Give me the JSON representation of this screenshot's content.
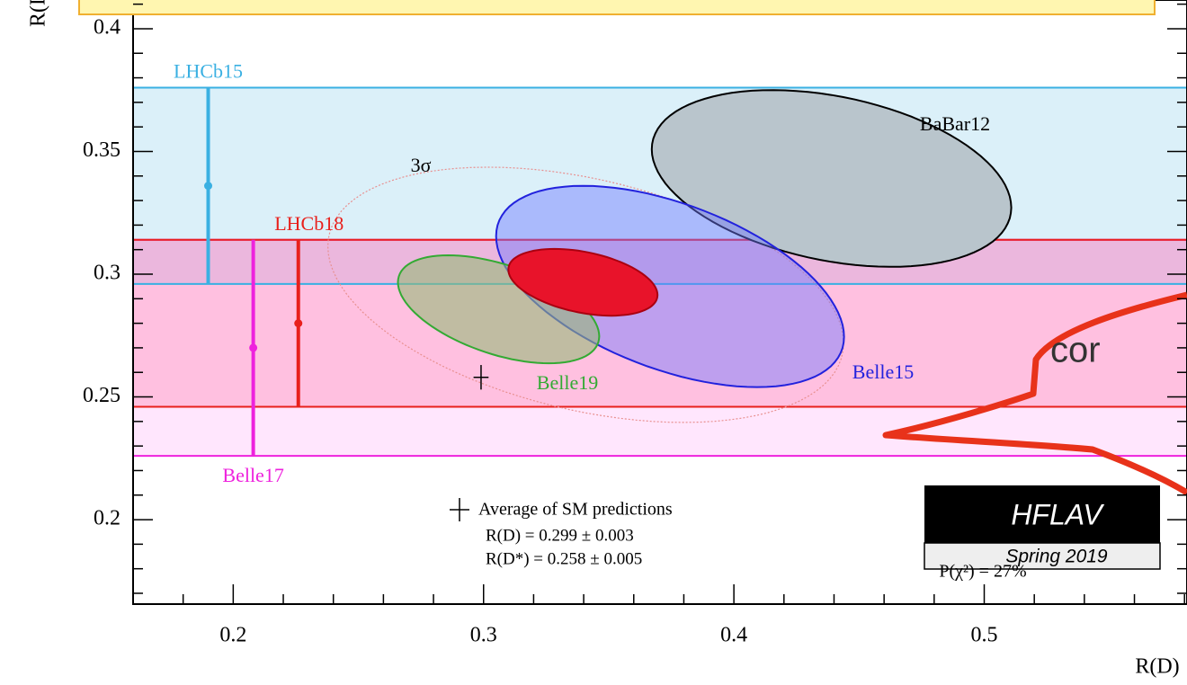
{
  "chart_data": {
    "type": "contour",
    "xlabel": "R(D)",
    "ylabel": "R(D*)",
    "xlim": [
      0.16,
      0.581
    ],
    "ylim": [
      0.1656,
      0.4117
    ],
    "xticks": [
      0.2,
      0.3,
      0.4,
      0.5
    ],
    "yticks": [
      0.2,
      0.25,
      0.3,
      0.35,
      0.4
    ],
    "xminorticks": [
      0.18,
      0.22,
      0.24,
      0.26,
      0.28,
      0.32,
      0.34,
      0.36,
      0.38,
      0.42,
      0.44,
      0.46,
      0.48,
      0.52,
      0.54,
      0.56,
      0.58
    ],
    "yminorticks": [
      0.17,
      0.18,
      0.19,
      0.21,
      0.22,
      0.23,
      0.24,
      0.26,
      0.27,
      0.28,
      0.29,
      0.31,
      0.32,
      0.33,
      0.34,
      0.36,
      0.37,
      0.38,
      0.39,
      0.41
    ],
    "bands": [
      {
        "name": "LHCb15",
        "color": "#3ab0e2",
        "fill": "rgba(135,206,235,0.30)",
        "x": 0.19,
        "value": 0.336,
        "error": 0.04
      },
      {
        "name": "Belle17",
        "color": "#ee22dd",
        "fill": "rgba(255,140,245,0.22)",
        "x": 0.208,
        "value": 0.27,
        "error": 0.044
      },
      {
        "name": "LHCb18",
        "color": "#e8201c",
        "fill": "rgba(255,95,150,0.28)",
        "x": 0.226,
        "value": 0.28,
        "error": 0.034
      }
    ],
    "ellipses": [
      {
        "name": "3σ",
        "color": "#e89090",
        "fill": "none",
        "dashed": true,
        "x": 0.3408,
        "y": 0.2916,
        "sx": 0.103,
        "sy": 0.052,
        "rho": -0.38
      },
      {
        "name": "BaBar12",
        "color": "#000000",
        "fill": "#b9c5cc",
        "x": 0.439,
        "y": 0.339,
        "sx": 0.0718,
        "sy": 0.036,
        "rho": -0.33
      },
      {
        "name": "Belle15",
        "color": "#2222dd",
        "fill": "rgba(110,120,255,0.45)",
        "x": 0.3745,
        "y": 0.295,
        "sx": 0.0695,
        "sy": 0.041,
        "rho": -0.5
      },
      {
        "name": "Belle19",
        "color": "#33aa33",
        "fill": "rgba(150,185,120,0.6)",
        "x": 0.306,
        "y": 0.2857,
        "sx": 0.0402,
        "sy": 0.022,
        "rho": -0.5
      },
      {
        "color": "#aa0010",
        "fill": "#e8132a",
        "x": 0.3397,
        "y": 0.2967,
        "sx": 0.0298,
        "sy": 0.0136,
        "rho": -0.38
      }
    ],
    "sm": {
      "name": "Average of SM predictions",
      "x": 0.299,
      "y": 0.258,
      "xerr": 0.003,
      "yerr": 0.005,
      "lines": [
        "R(D) = 0.299 ± 0.003",
        "R(D*) = 0.258 ± 0.005"
      ]
    },
    "logo": {
      "title": "HFLAV",
      "subtitle": "Spring 2019"
    },
    "pvalue": "P(χ²) = 27%",
    "annotation": "cor"
  }
}
